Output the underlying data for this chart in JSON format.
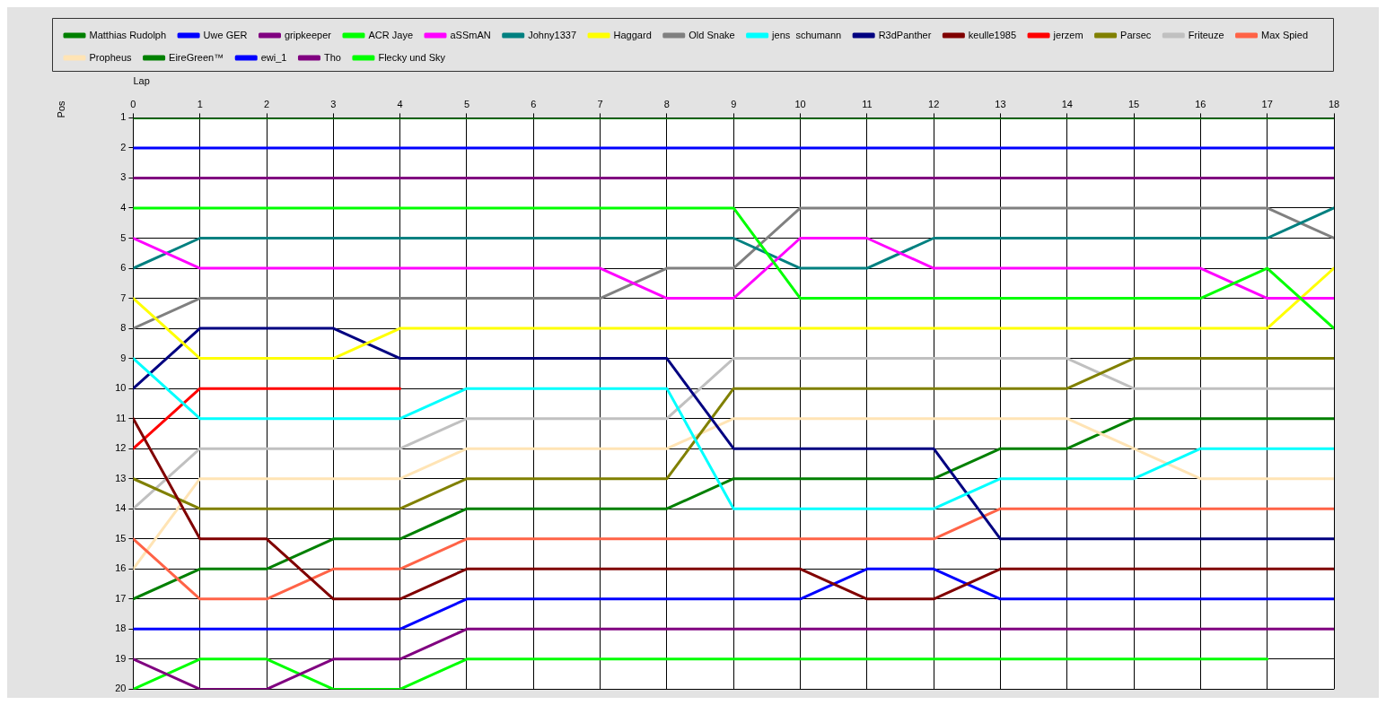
{
  "chart_data": {
    "type": "line",
    "xlabel": "Lap",
    "ylabel": "Pos",
    "x": [
      0,
      1,
      2,
      3,
      4,
      5,
      6,
      7,
      8,
      9,
      10,
      11,
      12,
      13,
      14,
      15,
      16,
      17,
      18
    ],
    "xlim": [
      0,
      18
    ],
    "xticks": [
      0,
      1,
      2,
      3,
      4,
      5,
      6,
      7,
      8,
      9,
      10,
      11,
      12,
      13,
      14,
      15,
      16,
      17,
      18
    ],
    "ylim": [
      20,
      1
    ],
    "yticks": [
      1,
      2,
      3,
      4,
      5,
      6,
      7,
      8,
      9,
      10,
      11,
      12,
      13,
      14,
      15,
      16,
      17,
      18,
      19,
      20
    ],
    "grid": true,
    "legend": "top",
    "marker": "none",
    "line_style": "solid",
    "series": [
      {
        "name": "Matthias Rudolph",
        "color": "#008000",
        "values": [
          1,
          1,
          1,
          1,
          1,
          1,
          1,
          1,
          1,
          1,
          1,
          1,
          1,
          1,
          1,
          1,
          1,
          1,
          1
        ]
      },
      {
        "name": "Uwe GER",
        "color": "#0000ff",
        "values": [
          2,
          2,
          2,
          2,
          2,
          2,
          2,
          2,
          2,
          2,
          2,
          2,
          2,
          2,
          2,
          2,
          2,
          2,
          2
        ]
      },
      {
        "name": "gripkeeper",
        "color": "#800080",
        "values": [
          3,
          3,
          3,
          3,
          3,
          3,
          3,
          3,
          3,
          3,
          3,
          3,
          3,
          3,
          3,
          3,
          3,
          3,
          3
        ]
      },
      {
        "name": "ACR Jaye",
        "color": "#00ff00",
        "values": [
          4,
          4,
          4,
          4,
          4,
          4,
          4,
          4,
          4,
          4,
          7,
          7,
          7,
          7,
          7,
          7,
          7,
          6,
          8
        ]
      },
      {
        "name": "aSSmAN",
        "color": "#ff00ff",
        "values": [
          5,
          6,
          6,
          6,
          6,
          6,
          6,
          6,
          7,
          7,
          5,
          5,
          6,
          6,
          6,
          6,
          6,
          7,
          7
        ]
      },
      {
        "name": "Johny1337",
        "color": "#008080",
        "values": [
          6,
          5,
          5,
          5,
          5,
          5,
          5,
          5,
          5,
          5,
          6,
          6,
          5,
          5,
          5,
          5,
          5,
          5,
          4
        ]
      },
      {
        "name": "Haggard",
        "color": "#ffff00",
        "values": [
          7,
          9,
          9,
          9,
          8,
          8,
          8,
          8,
          8,
          8,
          8,
          8,
          8,
          8,
          8,
          8,
          8,
          8,
          6
        ]
      },
      {
        "name": "Old Snake",
        "color": "#808080",
        "values": [
          8,
          7,
          7,
          7,
          7,
          7,
          7,
          7,
          6,
          6,
          4,
          4,
          4,
          4,
          4,
          4,
          4,
          4,
          5
        ]
      },
      {
        "name": "jens  schumann",
        "color": "#00ffff",
        "values": [
          9,
          11,
          11,
          11,
          11,
          10,
          10,
          10,
          10,
          14,
          14,
          14,
          14,
          13,
          13,
          13,
          12,
          12,
          12
        ]
      },
      {
        "name": "R3dPanther",
        "color": "#000080",
        "values": [
          10,
          8,
          8,
          8,
          9,
          9,
          9,
          9,
          9,
          12,
          12,
          12,
          12,
          15,
          15,
          15,
          15,
          15,
          15
        ]
      },
      {
        "name": "keulle1985",
        "color": "#800000",
        "values": [
          11,
          15,
          15,
          17,
          17,
          16,
          16,
          16,
          16,
          16,
          16,
          17,
          17,
          16,
          16,
          16,
          16,
          16,
          16
        ]
      },
      {
        "name": "jerzem",
        "color": "#ff0000",
        "values": [
          12,
          10,
          10,
          10,
          10,
          null,
          null,
          null,
          null,
          null,
          null,
          null,
          null,
          null,
          null,
          null,
          null,
          null,
          null
        ]
      },
      {
        "name": "Parsec",
        "color": "#808000",
        "values": [
          13,
          14,
          14,
          14,
          14,
          13,
          13,
          13,
          13,
          10,
          10,
          10,
          10,
          10,
          10,
          9,
          9,
          9,
          9
        ]
      },
      {
        "name": "Friteuze",
        "color": "#c0c0c0",
        "values": [
          14,
          12,
          12,
          12,
          12,
          11,
          11,
          11,
          11,
          9,
          9,
          9,
          9,
          9,
          9,
          10,
          10,
          10,
          10
        ]
      },
      {
        "name": "Max Spied",
        "color": "#ff6347",
        "values": [
          15,
          17,
          17,
          16,
          16,
          15,
          15,
          15,
          15,
          15,
          15,
          15,
          15,
          14,
          14,
          14,
          14,
          14,
          14
        ]
      },
      {
        "name": "Propheus",
        "color": "#ffe4b5",
        "values": [
          16,
          13,
          13,
          13,
          13,
          12,
          12,
          12,
          12,
          11,
          11,
          11,
          11,
          11,
          11,
          12,
          13,
          13,
          13
        ]
      },
      {
        "name": "EireGreen™",
        "color": "#008000",
        "values": [
          17,
          16,
          16,
          15,
          15,
          14,
          14,
          14,
          14,
          13,
          13,
          13,
          13,
          12,
          12,
          11,
          11,
          11,
          11
        ]
      },
      {
        "name": "ewi_1",
        "color": "#0000ff",
        "values": [
          18,
          18,
          18,
          18,
          18,
          17,
          17,
          17,
          17,
          17,
          17,
          16,
          16,
          17,
          17,
          17,
          17,
          17,
          17
        ]
      },
      {
        "name": "Tho",
        "color": "#800080",
        "values": [
          19,
          20,
          20,
          19,
          19,
          18,
          18,
          18,
          18,
          18,
          18,
          18,
          18,
          18,
          18,
          18,
          18,
          18,
          18
        ]
      },
      {
        "name": "Flecky und Sky",
        "color": "#00ff00",
        "values": [
          20,
          19,
          19,
          20,
          20,
          19,
          19,
          19,
          19,
          19,
          19,
          19,
          19,
          19,
          19,
          19,
          19,
          19,
          null
        ]
      }
    ]
  }
}
